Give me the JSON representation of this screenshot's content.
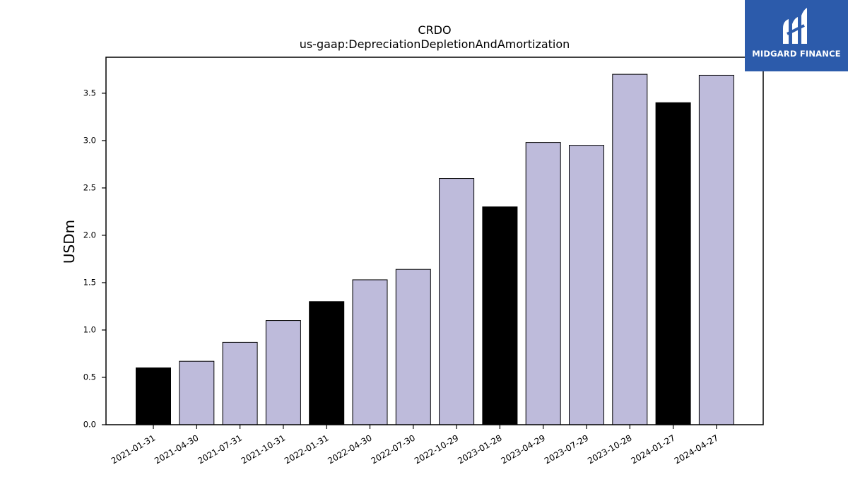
{
  "brand": {
    "name": "MIDGARD FINANCE",
    "color": "#2c5bab"
  },
  "chart_data": {
    "type": "bar",
    "title": "CRDO",
    "subtitle": "us-gaap:DepreciationDepletionAndAmortization",
    "xlabel": "",
    "ylabel": "USDm",
    "ylim": [
      0,
      3.88
    ],
    "yticks": [
      "0.0",
      "0.5",
      "1.0",
      "1.5",
      "2.0",
      "2.5",
      "3.0",
      "3.5"
    ],
    "grid": false,
    "categories": [
      "2021-01-31",
      "2021-04-30",
      "2021-07-31",
      "2021-10-31",
      "2022-01-31",
      "2022-04-30",
      "2022-07-30",
      "2022-10-29",
      "2023-01-28",
      "2023-04-29",
      "2023-07-29",
      "2023-10-28",
      "2024-01-27",
      "2024-04-27"
    ],
    "values": [
      0.6,
      0.67,
      0.87,
      1.1,
      1.3,
      1.53,
      1.64,
      2.6,
      2.3,
      2.98,
      2.95,
      3.7,
      3.4,
      3.69
    ],
    "bar_colors": [
      "#000000",
      "#bebbdb",
      "#bebbdb",
      "#bebbdb",
      "#000000",
      "#bebbdb",
      "#bebbdb",
      "#bebbdb",
      "#000000",
      "#bebbdb",
      "#bebbdb",
      "#bebbdb",
      "#000000",
      "#bebbdb"
    ]
  }
}
